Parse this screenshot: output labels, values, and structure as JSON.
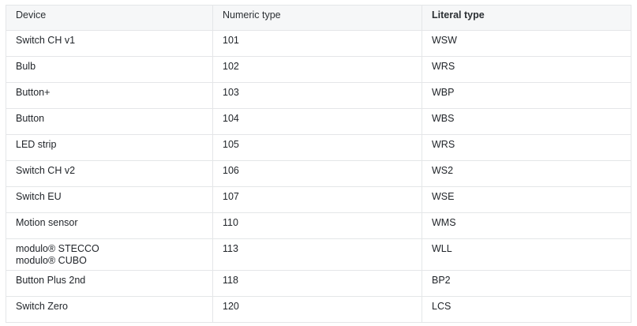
{
  "headers": [
    "Device",
    "Numeric type",
    "Literal type"
  ],
  "rows": [
    {
      "device": [
        "Switch CH v1"
      ],
      "numeric": "101",
      "literal": "WSW"
    },
    {
      "device": [
        "Bulb"
      ],
      "numeric": "102",
      "literal": "WRS"
    },
    {
      "device": [
        "Button+"
      ],
      "numeric": "103",
      "literal": "WBP"
    },
    {
      "device": [
        "Button"
      ],
      "numeric": "104",
      "literal": "WBS"
    },
    {
      "device": [
        "LED strip"
      ],
      "numeric": "105",
      "literal": "WRS"
    },
    {
      "device": [
        "Switch CH v2"
      ],
      "numeric": "106",
      "literal": "WS2"
    },
    {
      "device": [
        "Switch EU"
      ],
      "numeric": "107",
      "literal": "WSE"
    },
    {
      "device": [
        "Motion sensor"
      ],
      "numeric": "110",
      "literal": "WMS"
    },
    {
      "device": [
        "modulo® STECCO",
        "modulo® CUBO"
      ],
      "numeric": "113",
      "literal": "WLL"
    },
    {
      "device": [
        "Button Plus 2nd"
      ],
      "numeric": "118",
      "literal": "BP2"
    },
    {
      "device": [
        "Switch Zero"
      ],
      "numeric": "120",
      "literal": "LCS"
    }
  ]
}
